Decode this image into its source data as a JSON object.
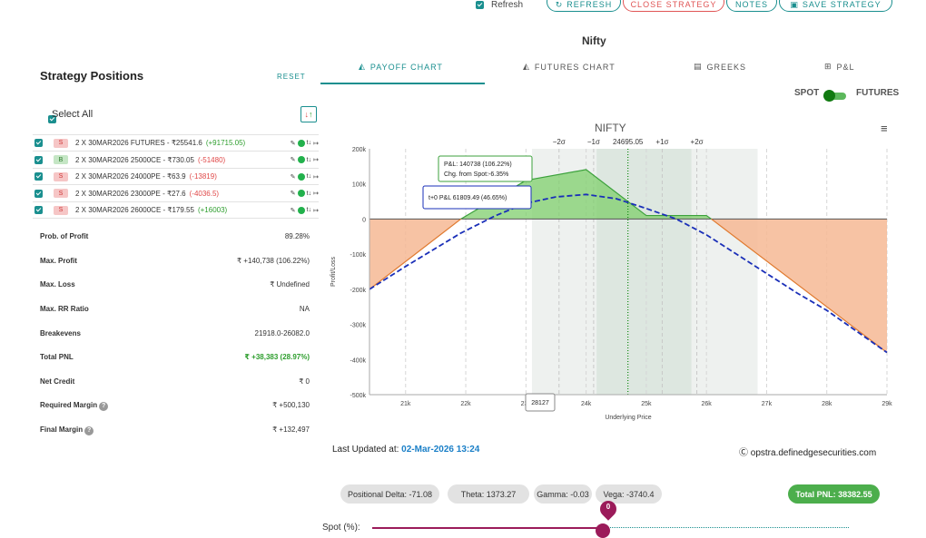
{
  "topbar": {
    "refresh_label": "Refresh",
    "buttons": [
      "REFRESH",
      "CLOSE STRATEGY",
      "NOTES",
      "SAVE STRATEGY"
    ]
  },
  "symbol_title": "Nifty",
  "left": {
    "title": "Strategy Positions",
    "reset": "RESET",
    "select_all": "Select All",
    "positions": [
      {
        "side": "S",
        "text": "2 X 30MAR2026 FUTURES - ₹25541.6",
        "pnl": "(+91715.05)",
        "pnl_sign": "pos"
      },
      {
        "side": "B",
        "text": "2 X 30MAR2026 25000CE - ₹730.05",
        "pnl": "(-51480)",
        "pnl_sign": "neg"
      },
      {
        "side": "S",
        "text": "2 X 30MAR2026 24000PE - ₹63.9",
        "pnl": "(-13819)",
        "pnl_sign": "neg"
      },
      {
        "side": "S",
        "text": "2 X 30MAR2026 23000PE - ₹27.6",
        "pnl": "(-4036.5)",
        "pnl_sign": "neg"
      },
      {
        "side": "S",
        "text": "2 X 30MAR2026 26000CE - ₹179.55",
        "pnl": "(+16003)",
        "pnl_sign": "pos"
      }
    ],
    "row_icons": "t↓",
    "stats": [
      {
        "label": "Prob. of Profit",
        "value": "89.28%"
      },
      {
        "label": "Max. Profit",
        "value": "₹ +140,738 (106.22%)"
      },
      {
        "label": "Max. Loss",
        "value": "₹ Undefined"
      },
      {
        "label": "Max. RR Ratio",
        "value": "NA"
      },
      {
        "label": "Breakevens",
        "value": "21918.0-26082.0"
      },
      {
        "label": "Total PNL",
        "value": "₹ +38,383 (28.97%)"
      },
      {
        "label": "Net Credit",
        "value": "₹ 0"
      },
      {
        "label": "Required Margin",
        "value": "₹ +500,130"
      },
      {
        "label": "Final Margin",
        "value": "₹ +132,497"
      }
    ]
  },
  "tabs": [
    "PAYOFF CHART",
    "FUTURES CHART",
    "GREEKS",
    "P&L"
  ],
  "toggle": {
    "left": "SPOT",
    "right": "FUTURES"
  },
  "chart_data": {
    "type": "line",
    "title": "NIFTY",
    "xlabel": "Underlying Price",
    "ylabel": "Profit/Loss",
    "xlim": [
      20400,
      29000
    ],
    "ylim": [
      -500000,
      200000
    ],
    "x_ticks": [
      21000,
      22000,
      23000,
      24000,
      25000,
      26000,
      27000,
      28000,
      29000
    ],
    "x_tick_labels": [
      "21k",
      "22k",
      "23k",
      "24k",
      "25k",
      "26k",
      "27k",
      "28k",
      "29k"
    ],
    "y_ticks": [
      200000,
      100000,
      0,
      -100000,
      -200000,
      -300000,
      -400000,
      -500000
    ],
    "y_tick_labels": [
      "200k",
      "100k",
      "0",
      "-100k",
      "-200k",
      "-300k",
      "-400k",
      "-500k"
    ],
    "sigma_labels": [
      {
        "label": "−2σ",
        "x": 23550
      },
      {
        "label": "−1σ",
        "x": 24125
      },
      {
        "label": "24695.05",
        "x": 24695
      },
      {
        "label": "+1σ",
        "x": 25265
      },
      {
        "label": "+2σ",
        "x": 25840
      }
    ],
    "bands": [
      {
        "from": 23100,
        "to": 26850,
        "color": "#eef1ef"
      },
      {
        "from": 24175,
        "to": 25750,
        "color": "#dde7e0"
      }
    ],
    "spot": 24695,
    "expiry_payoff": [
      {
        "x": 20400,
        "y": -200000
      },
      {
        "x": 21918,
        "y": 0
      },
      {
        "x": 23000,
        "y": 110000
      },
      {
        "x": 24000,
        "y": 140738
      },
      {
        "x": 25000,
        "y": 10000
      },
      {
        "x": 26000,
        "y": 10000
      },
      {
        "x": 26082,
        "y": 0
      },
      {
        "x": 29000,
        "y": -380000
      }
    ],
    "t0_curve": [
      {
        "x": 20400,
        "y": -200000
      },
      {
        "x": 21000,
        "y": -135000
      },
      {
        "x": 21918,
        "y": -40000
      },
      {
        "x": 22500,
        "y": 10000
      },
      {
        "x": 23000,
        "y": 45000
      },
      {
        "x": 23500,
        "y": 63000
      },
      {
        "x": 24000,
        "y": 70000
      },
      {
        "x": 24500,
        "y": 58000
      },
      {
        "x": 25000,
        "y": 30000
      },
      {
        "x": 25500,
        "y": 0
      },
      {
        "x": 26000,
        "y": -45000
      },
      {
        "x": 26500,
        "y": -100000
      },
      {
        "x": 27000,
        "y": -155000
      },
      {
        "x": 27500,
        "y": -210000
      },
      {
        "x": 28000,
        "y": -260000
      },
      {
        "x": 28500,
        "y": -320000
      },
      {
        "x": 29000,
        "y": -380000
      }
    ],
    "tooltip_expiry": {
      "line1": "P&L: 140738 (106.22%)",
      "line2": "Chg. from Spot:-6.35%"
    },
    "tooltip_t0": {
      "line1": "t+0 P&L 61809.49 (46.65%)"
    },
    "cursor_label": "28127",
    "colors": {
      "profit": "#7fcf6c",
      "loss": "#f6b894",
      "payoff_line_profit": "#3ca13c",
      "payoff_line_loss": "#e07a2f",
      "t0": "#1a2fb8",
      "spot": "#118811"
    }
  },
  "footer": {
    "updated_label": "Last Updated at:",
    "updated_value": "02-Mar-2026 13:24",
    "watermark": "opstra.definedgesecurities.com"
  },
  "greeks": {
    "delta": "Positional Delta: -71.08",
    "theta": "Theta: 1373.27",
    "gamma": "Gamma: -0.03",
    "vega": "Vega: -3740.4",
    "total_pnl": "Total PNL: 38382.55"
  },
  "spot_slider": {
    "label": "Spot (%):",
    "value": "0"
  }
}
